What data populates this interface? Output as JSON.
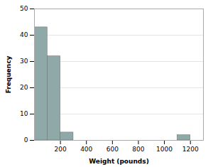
{
  "chart_data": {
    "type": "histogram",
    "bins": [
      0,
      100,
      200,
      300,
      400,
      500,
      600,
      700,
      800,
      900,
      1000,
      1100,
      1200,
      1300
    ],
    "values": [
      43,
      32,
      3,
      0,
      0,
      0,
      0,
      0,
      0,
      0,
      0,
      2,
      0
    ],
    "color": "#8fa8a8",
    "xlabel": "Weight (pounds)",
    "ylabel": "Frequency",
    "xlim": [
      0,
      1300
    ],
    "ylim": [
      0,
      50
    ],
    "xticks": [
      200,
      400,
      600,
      800,
      1000,
      1200
    ],
    "yticks": [
      0,
      10,
      20,
      30,
      40,
      50
    ],
    "grid": true
  }
}
